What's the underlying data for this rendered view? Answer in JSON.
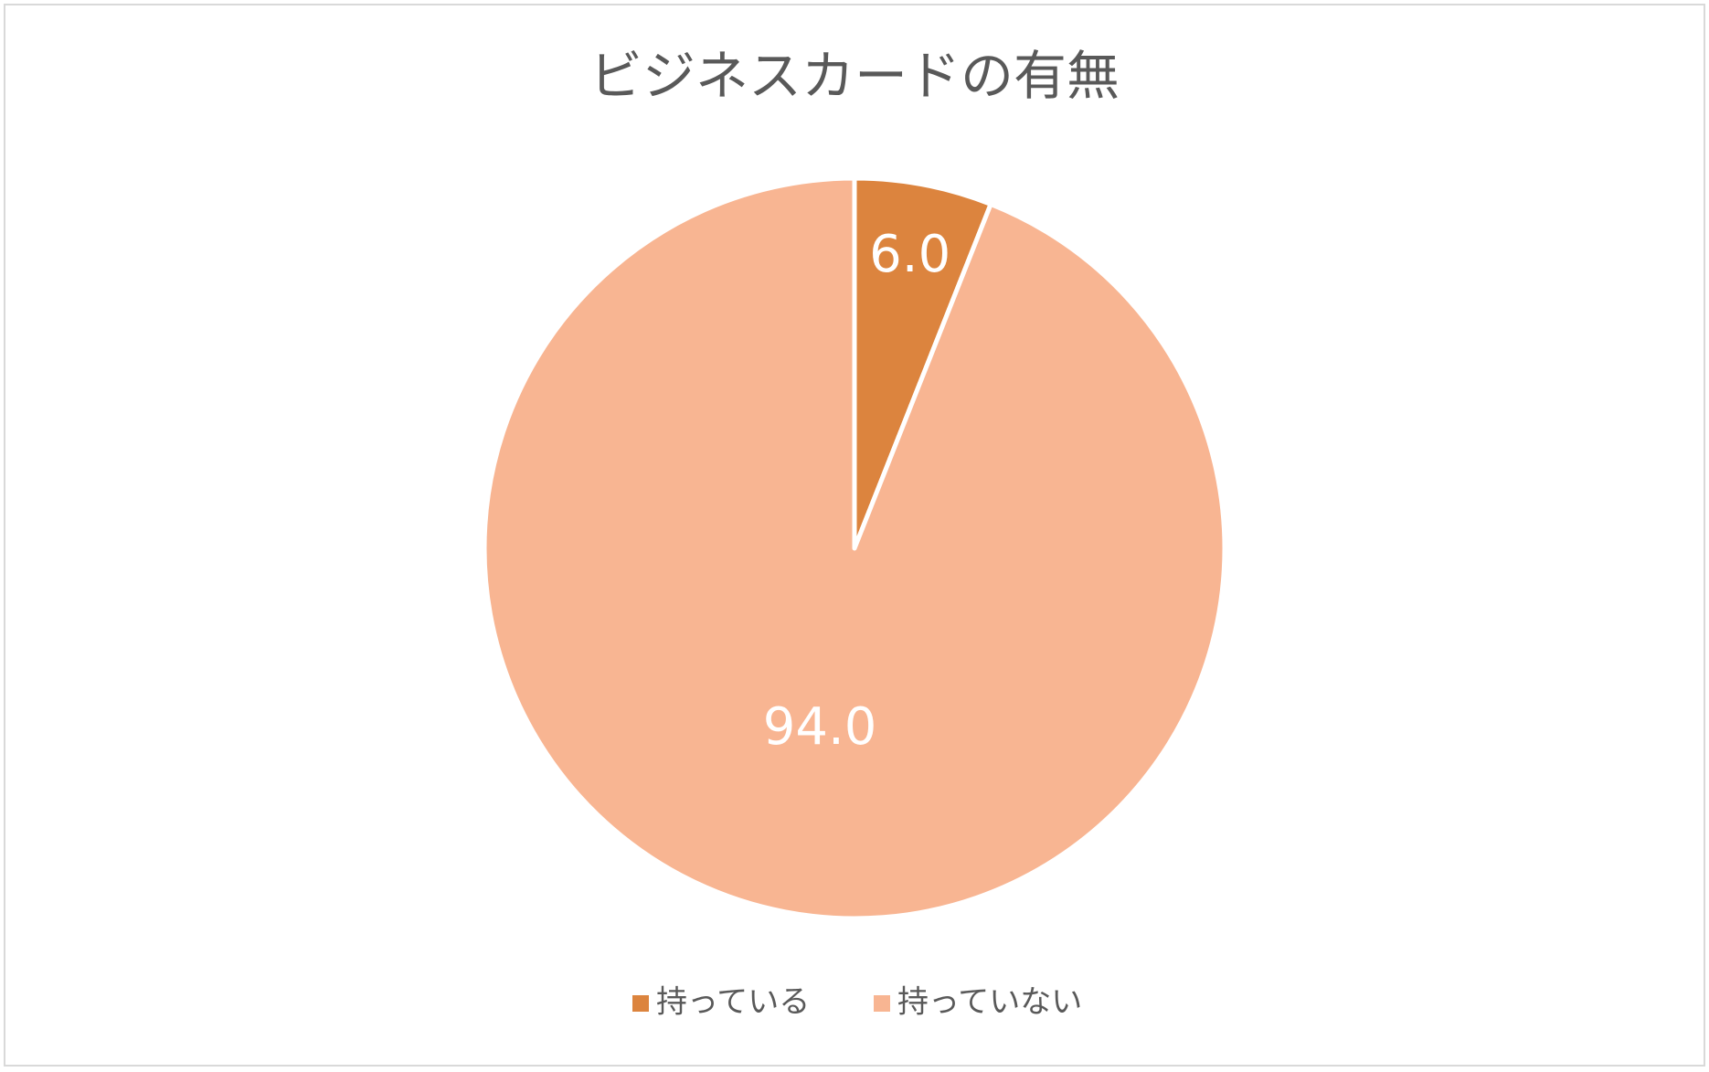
{
  "chart_data": {
    "type": "pie",
    "title": "ビジネスカードの有無",
    "categories": [
      "持っている",
      "持っていない"
    ],
    "values": [
      6.0,
      94.0
    ],
    "value_labels": [
      "6.0",
      "94.0"
    ],
    "colors": [
      "#dc843e",
      "#f8b592"
    ],
    "legend": "bottom"
  }
}
